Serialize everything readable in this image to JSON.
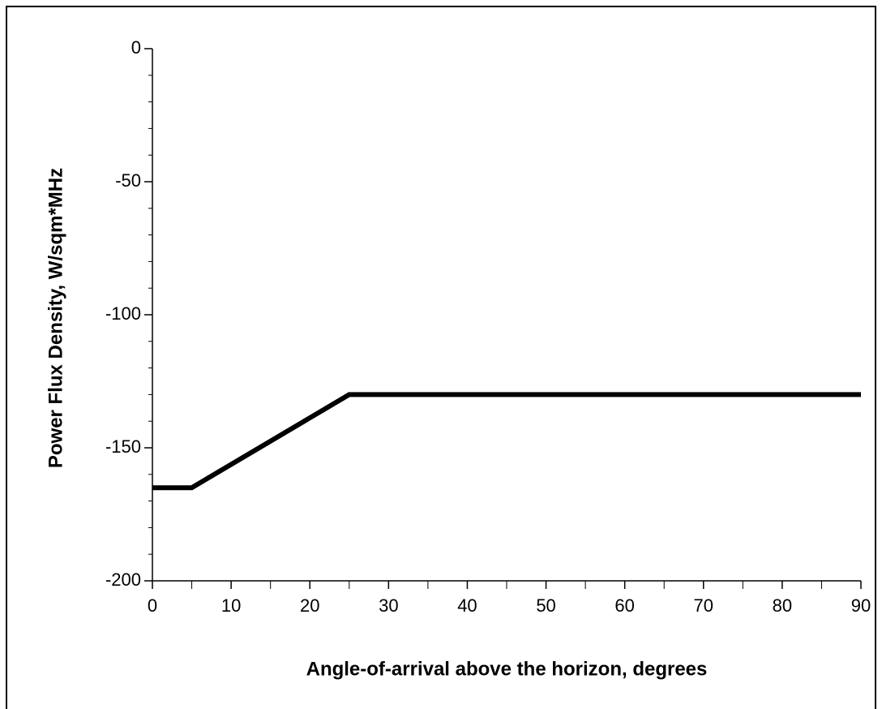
{
  "chart_data": {
    "type": "line",
    "xlabel": "Angle-of-arrival above the horizon, degrees",
    "ylabel": "Power Flux Density, W/sqm*MHz",
    "x": [
      0,
      5,
      25,
      90
    ],
    "series": [
      {
        "color": "#000000",
        "values": [
          -165,
          -165,
          -130,
          -130
        ]
      }
    ],
    "xlim": [
      0,
      90
    ],
    "ylim": [
      -200,
      0
    ],
    "xticks": [
      0,
      10,
      20,
      30,
      40,
      50,
      60,
      70,
      80,
      90
    ],
    "yticks": [
      -200,
      -150,
      -100,
      -50,
      0
    ],
    "xticks_minor": [
      5,
      15,
      25,
      35,
      45,
      55,
      65,
      75,
      85
    ],
    "yticks_minor": [
      -190,
      -180,
      -170,
      -160,
      -140,
      -130,
      -120,
      -110,
      -90,
      -80,
      -70,
      -60,
      -40,
      -30,
      -20,
      -10
    ],
    "grid": false
  }
}
